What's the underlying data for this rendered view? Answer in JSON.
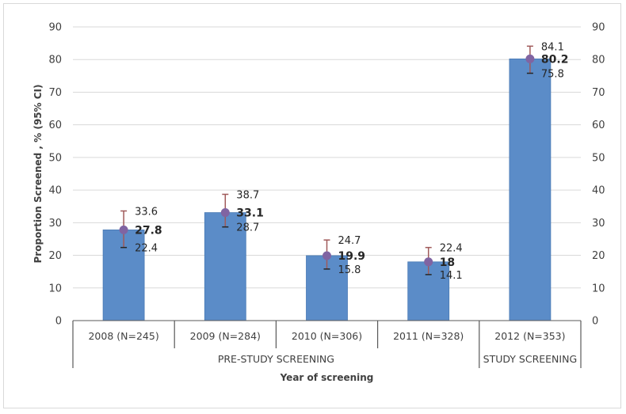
{
  "chart_data": {
    "type": "bar",
    "categories": [
      "2008 (N=245)",
      "2009 (N=284)",
      "2010 (N=306)",
      "2011 (N=328)",
      "2012 (N=353)"
    ],
    "values": [
      27.8,
      33.1,
      19.9,
      18,
      80.2
    ],
    "ci_upper": [
      33.6,
      38.7,
      24.7,
      22.4,
      84.1
    ],
    "ci_lower": [
      22.4,
      28.7,
      15.8,
      14.1,
      75.8
    ],
    "groups": [
      {
        "label": "PRE-STUDY SCREENING",
        "categories": [
          0,
          1,
          2,
          3
        ]
      },
      {
        "label": "STUDY SCREENING",
        "categories": [
          4
        ]
      }
    ],
    "title": "",
    "xlabel": "Year of screening",
    "ylabel": "Proportion Screened , % (95% CI)",
    "ylim": [
      0,
      90
    ],
    "yticks": [
      0,
      10,
      20,
      30,
      40,
      50,
      60,
      70,
      80,
      90
    ],
    "secondary_y_axis": true,
    "grid": true,
    "colors": {
      "bar": "#5b8cc8",
      "bar_edge": "#4a7ab5",
      "marker": "#8064a2",
      "error_bar": "#a05a5a",
      "grid": "#d9d9d9",
      "axis": "#595959"
    }
  }
}
